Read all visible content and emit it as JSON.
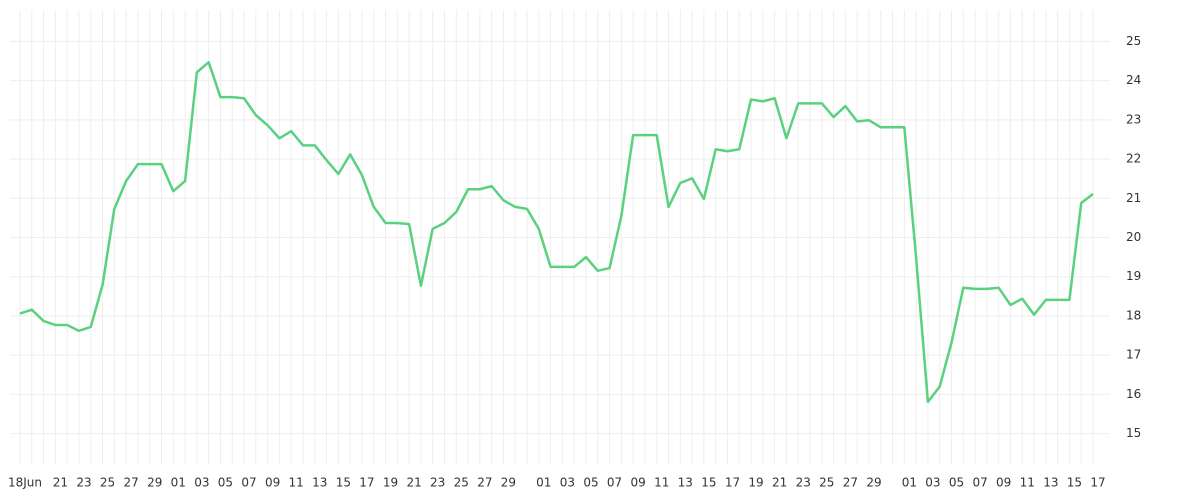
{
  "chart_data": {
    "type": "line",
    "categories": [
      "18Jun",
      null,
      null,
      "21",
      null,
      "23",
      null,
      "25",
      null,
      "27",
      null,
      "29",
      null,
      "01",
      null,
      "03",
      null,
      "05",
      null,
      "07",
      null,
      "09",
      null,
      "11",
      null,
      "13",
      null,
      "15",
      null,
      "17",
      null,
      "19",
      null,
      "21",
      null,
      "23",
      null,
      "25",
      null,
      "27",
      null,
      "29",
      null,
      null,
      "01",
      null,
      "03",
      null,
      "05",
      null,
      "07",
      null,
      "09",
      null,
      "11",
      null,
      "13",
      null,
      "15",
      null,
      "17",
      null,
      "19",
      null,
      "21",
      null,
      "23",
      null,
      "25",
      null,
      "27",
      null,
      "29",
      null,
      null,
      "01",
      null,
      "03",
      null,
      "05",
      null,
      "07",
      null,
      "09",
      null,
      "11",
      null,
      "13",
      null,
      "15",
      null,
      "17"
    ],
    "values": [
      18.06,
      18.16,
      17.87,
      17.77,
      17.77,
      17.62,
      17.72,
      18.79,
      20.73,
      21.44,
      21.87,
      21.87,
      21.87,
      21.18,
      21.44,
      24.21,
      24.47,
      23.58,
      23.58,
      23.55,
      23.12,
      22.86,
      22.53,
      22.71,
      22.35,
      22.35,
      21.97,
      21.62,
      22.12,
      21.59,
      20.78,
      20.37,
      20.37,
      20.34,
      18.77,
      20.22,
      20.37,
      20.65,
      21.23,
      21.23,
      21.31,
      20.95,
      20.78,
      20.73,
      20.22,
      19.25,
      19.25,
      19.25,
      19.5,
      19.15,
      19.22,
      20.55,
      22.61,
      22.61,
      22.61,
      20.78,
      21.39,
      21.51,
      20.98,
      22.25,
      22.2,
      22.25,
      23.52,
      23.47,
      23.55,
      22.53,
      23.42,
      23.42,
      23.42,
      23.07,
      23.35,
      22.96,
      22.99,
      22.81,
      22.81,
      22.81,
      19.48,
      15.81,
      16.2,
      17.32,
      18.72,
      18.69,
      18.69,
      18.72,
      18.28,
      18.44,
      18.03,
      18.41,
      18.41,
      18.41,
      20.88,
      21.11
    ],
    "color": "#5ad17f",
    "ylim": [
      14.2,
      25.8
    ],
    "yticks": [
      15,
      16,
      17,
      18,
      19,
      20,
      21,
      22,
      23,
      24,
      25
    ],
    "grid": true
  }
}
